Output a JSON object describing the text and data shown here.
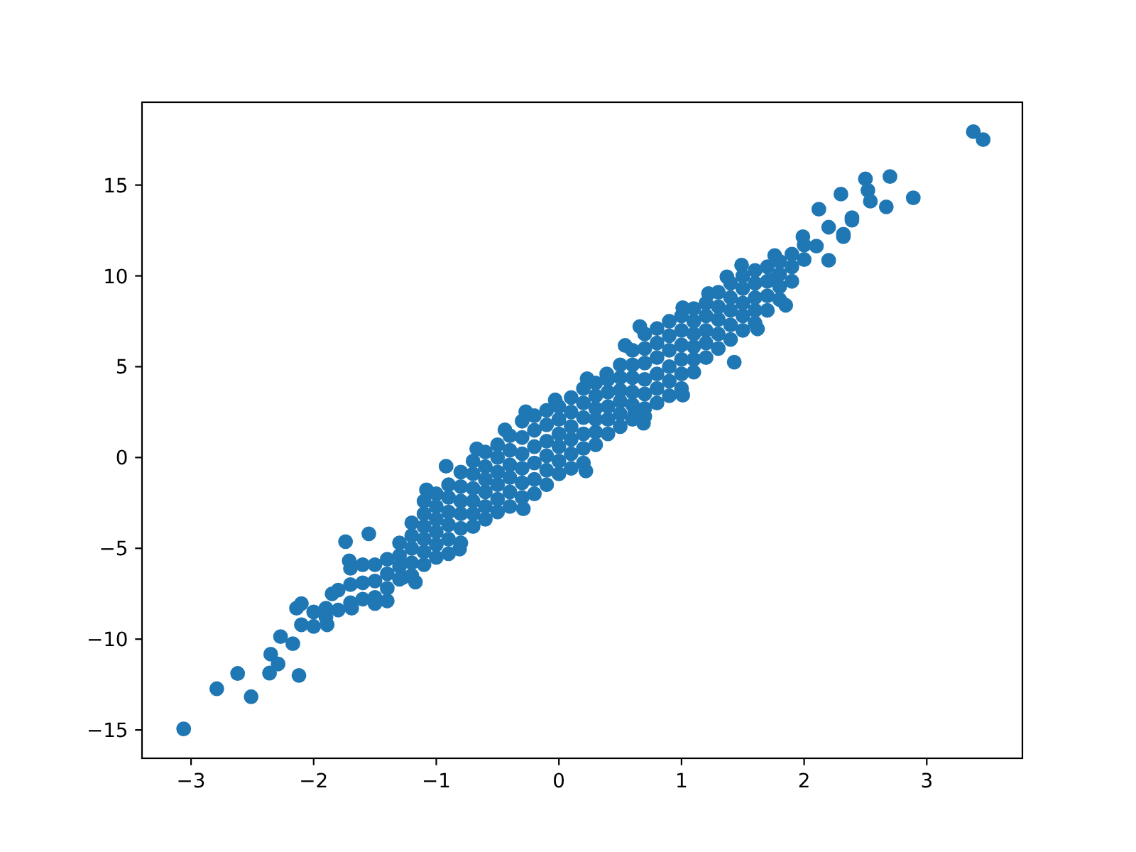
{
  "chart_data": {
    "type": "scatter",
    "color": "#1f77b4",
    "marker": "circle",
    "x": [
      -3.06,
      -2.79,
      -2.62,
      -2.51,
      -2.36,
      -2.35,
      -2.29,
      -2.12,
      -2.27,
      -2.17,
      -2.1,
      -2.14,
      -2.1,
      -1.89,
      -1.85,
      -1.71,
      -1.69,
      -1.5,
      -1.4,
      -1.17,
      -1.27,
      -1.74,
      -1.55,
      -1.08,
      -0.92,
      -0.67,
      -0.44,
      -0.27,
      -0.03,
      0.23,
      0.39,
      0.54,
      0.66,
      1.01,
      1.22,
      1.37,
      1.49,
      1.76,
      1.99,
      2.1,
      2.2,
      2.39,
      -0.81,
      -0.29,
      0.22,
      0.62,
      0.69,
      1.43,
      1.62,
      1.85,
      2.2,
      2.32,
      1.01,
      0.7,
      1.76,
      3.38,
      3.46,
      2.7,
      2.89,
      2.5,
      2.3,
      2.52,
      2.54,
      2.67,
      2.12,
      2.39,
      2.32,
      -2,
      -2,
      -1.9,
      -1.9,
      -1.8,
      -1.8,
      -1.7,
      -1.7,
      -1.7,
      -1.6,
      -1.6,
      -1.6,
      -1.5,
      -1.5,
      -1.5,
      -1.4,
      -1.4,
      -1.4,
      -1.3,
      -1.3,
      -1.3,
      -1.3,
      -1.2,
      -1.2,
      -1.2,
      -1.2,
      -1.2,
      -1.1,
      -1.1,
      -1.1,
      -1.1,
      -1.1,
      -1.1,
      -1,
      -1,
      -1,
      -1,
      -1,
      -1,
      -0.9,
      -0.9,
      -0.9,
      -0.9,
      -0.9,
      -0.9,
      -0.8,
      -0.8,
      -0.8,
      -0.8,
      -0.8,
      -0.8,
      -0.7,
      -0.7,
      -0.7,
      -0.7,
      -0.7,
      -0.7,
      -0.6,
      -0.6,
      -0.6,
      -0.6,
      -0.6,
      -0.6,
      -0.5,
      -0.5,
      -0.5,
      -0.5,
      -0.5,
      -0.5,
      -0.4,
      -0.4,
      -0.4,
      -0.4,
      -0.4,
      -0.4,
      -0.3,
      -0.3,
      -0.3,
      -0.3,
      -0.3,
      -0.3,
      -0.2,
      -0.2,
      -0.2,
      -0.2,
      -0.2,
      -0.2,
      -0.1,
      -0.1,
      -0.1,
      -0.1,
      -0.1,
      -0.1,
      0,
      0,
      0,
      0,
      0,
      0,
      0.1,
      0.1,
      0.1,
      0.1,
      0.1,
      0.1,
      0.2,
      0.2,
      0.2,
      0.2,
      0.2,
      0.2,
      0.3,
      0.3,
      0.3,
      0.3,
      0.3,
      0.3,
      0.4,
      0.4,
      0.4,
      0.4,
      0.4,
      0.5,
      0.5,
      0.5,
      0.5,
      0.5,
      0.5,
      0.6,
      0.6,
      0.6,
      0.6,
      0.6,
      0.6,
      0.7,
      0.7,
      0.7,
      0.7,
      0.7,
      0.7,
      0.8,
      0.8,
      0.8,
      0.8,
      0.8,
      0.8,
      0.9,
      0.9,
      0.9,
      0.9,
      0.9,
      0.9,
      1,
      1,
      1,
      1,
      1,
      1,
      1.1,
      1.1,
      1.1,
      1.1,
      1.1,
      1.1,
      1.2,
      1.2,
      1.2,
      1.2,
      1.2,
      1.3,
      1.3,
      1.3,
      1.3,
      1.3,
      1.4,
      1.4,
      1.4,
      1.4,
      1.4,
      1.5,
      1.5,
      1.5,
      1.5,
      1.5,
      1.6,
      1.6,
      1.6,
      1.6,
      1.6,
      1.7,
      1.7,
      1.7,
      1.7,
      1.8,
      1.8,
      1.8,
      1.8,
      1.9,
      1.9,
      1.9,
      2,
      2
    ],
    "values": [
      -14.94,
      -12.73,
      -11.89,
      -13.17,
      -11.87,
      -10.83,
      -11.37,
      -12,
      -9.86,
      -10.25,
      -9.21,
      -8.3,
      -8.04,
      -9.21,
      -7.51,
      -5.69,
      -8.3,
      -8.04,
      -7.9,
      -6.86,
      -6.6,
      -4.63,
      -4.2,
      -1.78,
      -0.48,
      0.48,
      1.52,
      2.52,
      3.17,
      4.34,
      4.6,
      6.17,
      7.21,
      8.25,
      9.03,
      9.95,
      10.59,
      11.12,
      12.16,
      11.64,
      12.68,
      13.07,
      -5.04,
      -2.82,
      -0.74,
      2.52,
      1.89,
      5.25,
      7.08,
      8.38,
      10.86,
      12.29,
      3.43,
      2.26,
      9.81,
      17.94,
      17.5,
      15.47,
      14.3,
      15.34,
      14.5,
      14.71,
      14.11,
      13.8,
      13.67,
      13.2,
      12.16,
      -9.3,
      -8.5,
      -8.8,
      -8.3,
      -8.4,
      -7.3,
      -8,
      -7,
      -6.1,
      -7.8,
      -6.9,
      -5.9,
      -7.7,
      -6.8,
      -5.9,
      -7.2,
      -6.4,
      -5.6,
      -6.7,
      -6,
      -5.4,
      -4.7,
      -6.5,
      -5.8,
      -5,
      -4.3,
      -3.6,
      -5.9,
      -5.2,
      -4.5,
      -3.8,
      -3.1,
      -2.4,
      -5.5,
      -4.8,
      -4.1,
      -3.4,
      -2.7,
      -2,
      -5.3,
      -4.5,
      -3.7,
      -3,
      -2.2,
      -1.5,
      -4.7,
      -3.9,
      -3.1,
      -2.4,
      -1.6,
      -0.8,
      -3.8,
      -3.1,
      -2.4,
      -1.7,
      -0.9,
      -0.2,
      -3.4,
      -2.7,
      -1.9,
      -1.2,
      -0.5,
      0.3,
      -3,
      -2.3,
      -1.5,
      -0.8,
      0,
      0.7,
      -2.7,
      -1.9,
      -1.1,
      -0.4,
      0.4,
      1.2,
      -2.2,
      -1.4,
      -0.6,
      0.2,
      1.1,
      2,
      -2,
      -1.2,
      -0.3,
      0.6,
      1.5,
      2.3,
      -1.5,
      -0.7,
      0.1,
      0.9,
      1.8,
      2.6,
      -0.9,
      -0.2,
      0.6,
      1.3,
      2.1,
      2.8,
      -0.6,
      0.2,
      1,
      1.7,
      2.5,
      3.3,
      -0.3,
      0.5,
      1.3,
      2.2,
      3,
      3.8,
      0.7,
      1.4,
      2.1,
      2.7,
      3.4,
      4.1,
      1.3,
      2.1,
      2.8,
      3.6,
      4.3,
      1.7,
      2.4,
      3.1,
      3.7,
      4.4,
      5.1,
      2.1,
      2.9,
      3.6,
      4.4,
      5.1,
      5.9,
      2.7,
      3.5,
      4.3,
      5.2,
      6,
      6.8,
      3,
      3.8,
      4.6,
      5.5,
      6.3,
      7.1,
      3.4,
      4.2,
      5,
      5.9,
      6.7,
      7.5,
      3.8,
      4.6,
      5.4,
      6.2,
      7,
      7.8,
      4.7,
      5.4,
      6.1,
      6.8,
      7.5,
      8.2,
      5.5,
      6.3,
      7,
      7.8,
      8.5,
      6,
      6.8,
      7.6,
      8.3,
      9.1,
      6.5,
      7.3,
      8.1,
      8.8,
      9.6,
      7,
      7.8,
      8.5,
      9.3,
      10,
      7.4,
      8.1,
      8.8,
      9.6,
      10.3,
      8.1,
      8.9,
      9.7,
      10.5,
      8.7,
      9.4,
      10.1,
      10.8,
      9.7,
      10.5,
      11.2,
      10.9,
      11.7
    ],
    "xlim": [
      -3.4,
      3.78
    ],
    "ylim": [
      -16.56,
      19.56
    ],
    "xticks": [
      {
        "value": -3,
        "label": "−3"
      },
      {
        "value": -2,
        "label": "−2"
      },
      {
        "value": -1,
        "label": "−1"
      },
      0,
      1,
      2,
      3
    ],
    "yticks": [
      {
        "value": -15,
        "label": "−15"
      },
      {
        "value": -10,
        "label": "−10"
      },
      {
        "value": -5,
        "label": "−5"
      },
      0,
      5,
      10,
      15
    ]
  }
}
